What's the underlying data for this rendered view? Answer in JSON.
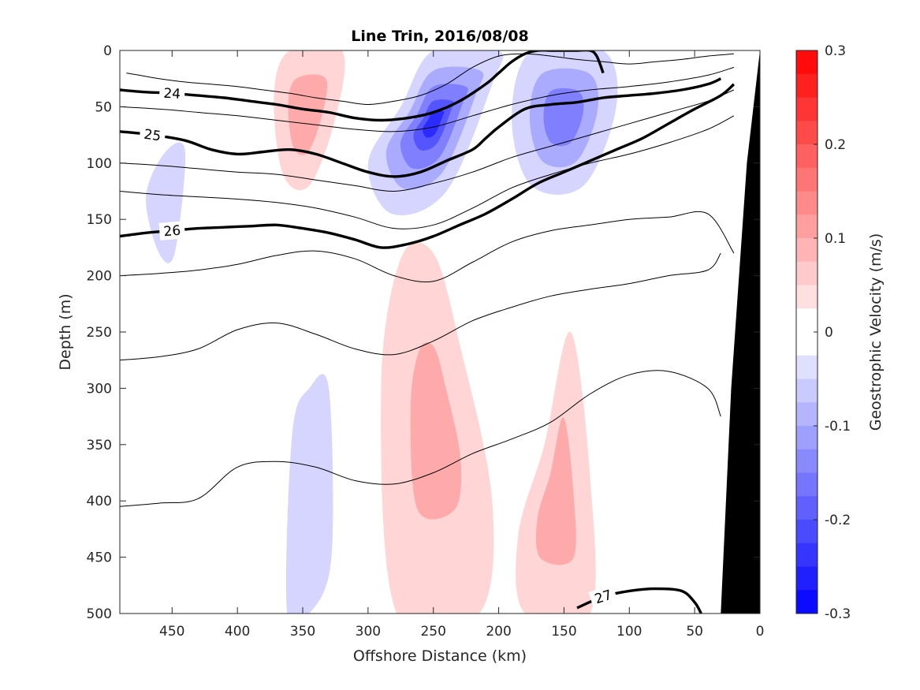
{
  "chart_data": {
    "type": "contour",
    "title": "Line Trin, 2016/08/08",
    "xlabel": "Offshore Distance (km)",
    "ylabel": "Depth (m)",
    "colorbar_label": "Geostrophic Velocity (m/s)",
    "xlim": [
      490,
      0
    ],
    "ylim": [
      0,
      500
    ],
    "x_reversed": true,
    "y_reversed": true,
    "x_ticks": [
      450,
      400,
      350,
      300,
      250,
      200,
      150,
      100,
      50,
      0
    ],
    "y_ticks": [
      0,
      50,
      100,
      150,
      200,
      250,
      300,
      350,
      400,
      450,
      500
    ],
    "colorbar_range": [
      -0.3,
      0.3
    ],
    "colorbar_ticks": [
      0.3,
      0.2,
      0.1,
      0,
      -0.1,
      -0.2,
      -0.3
    ],
    "colorbar_tick_labels": [
      "0.3",
      "0.2",
      "0.1",
      "0",
      "-0.1",
      "-0.2",
      "-0.3"
    ],
    "colorbar_levels": 24,
    "colors": {
      "positive": "#ff0000",
      "negative": "#0000ff",
      "zero": "#ffffff",
      "bathymetry": "#000000"
    },
    "bathymetry": [
      {
        "x": 0,
        "depth": 0
      },
      {
        "x": 10,
        "depth": 100
      },
      {
        "x": 22,
        "depth": 300
      },
      {
        "x": 30,
        "depth": 500
      }
    ],
    "velocity_fields": [
      {
        "id": "blue-core-1",
        "sign": "negative",
        "x": [
          200,
          250,
          275,
          300,
          282,
          240,
          205
        ],
        "depth": [
          0,
          0,
          50,
          100,
          145,
          125,
          30
        ],
        "levels": [
          {
            "value": -0.05,
            "scale": 1.0
          },
          {
            "value": -0.1,
            "scale": 0.72
          },
          {
            "value": -0.15,
            "scale": 0.5
          },
          {
            "value": -0.2,
            "scale": 0.3
          },
          {
            "value": -0.25,
            "scale": 0.16
          }
        ]
      },
      {
        "id": "blue-core-2",
        "sign": "negative",
        "x": [
          120,
          175,
          190,
          175,
          135,
          110
        ],
        "depth": [
          0,
          0,
          60,
          120,
          120,
          50
        ],
        "levels": [
          {
            "value": -0.05,
            "scale": 1.0
          },
          {
            "value": -0.1,
            "scale": 0.65
          },
          {
            "value": -0.15,
            "scale": 0.38
          }
        ]
      },
      {
        "id": "blue-patch-3",
        "sign": "negative",
        "x": [
          440,
          455,
          470,
          460,
          448
        ],
        "depth": [
          90,
          90,
          130,
          180,
          180
        ],
        "levels": [
          {
            "value": -0.05,
            "scale": 1.0
          }
        ]
      },
      {
        "id": "blue-patch-4",
        "sign": "negative",
        "x": [
          330,
          345,
          358,
          362,
          345,
          328
        ],
        "depth": [
          300,
          300,
          340,
          500,
          500,
          450
        ],
        "levels": [
          {
            "value": -0.05,
            "scale": 1.0
          }
        ]
      },
      {
        "id": "red-core-1",
        "sign": "positive",
        "x": [
          320,
          360,
          372,
          365,
          345,
          325
        ],
        "depth": [
          0,
          0,
          40,
          110,
          120,
          60
        ],
        "levels": [
          {
            "value": 0.05,
            "scale": 1.0
          },
          {
            "value": 0.1,
            "scale": 0.55
          }
        ]
      },
      {
        "id": "red-deep-1",
        "sign": "positive",
        "x": [
          250,
          275,
          290,
          278,
          215,
          205,
          230
        ],
        "depth": [
          180,
          185,
          300,
          500,
          500,
          400,
          260
        ],
        "levels": [
          {
            "value": 0.05,
            "scale": 1.0
          },
          {
            "value": 0.1,
            "scale": 0.45
          }
        ]
      },
      {
        "id": "red-deep-2",
        "sign": "positive",
        "x": [
          145,
          165,
          185,
          180,
          130,
          130
        ],
        "depth": [
          250,
          350,
          430,
          500,
          500,
          380
        ],
        "levels": [
          {
            "value": 0.05,
            "scale": 1.0
          },
          {
            "value": 0.1,
            "scale": 0.5
          }
        ]
      }
    ],
    "isopycnals": [
      {
        "level": null,
        "bold": false,
        "x": [
          485,
          475,
          460,
          440,
          420,
          400,
          380,
          360,
          340,
          320,
          300,
          280,
          260,
          240,
          220,
          200,
          180,
          160,
          140,
          120,
          100,
          80,
          60,
          40,
          20
        ],
        "depth": [
          20,
          22,
          25,
          28,
          30,
          32,
          35,
          38,
          42,
          45,
          48,
          45,
          40,
          30,
          15,
          5,
          3,
          5,
          8,
          10,
          12,
          10,
          8,
          5,
          3
        ]
      },
      {
        "level": 24,
        "bold": true,
        "label_at": 455,
        "x": [
          490,
          470,
          450,
          430,
          410,
          390,
          370,
          350,
          330,
          310,
          290,
          270,
          250,
          230,
          210,
          200,
          190,
          180,
          170,
          160,
          150,
          140,
          130,
          125,
          120
        ],
        "depth": [
          35,
          37,
          38,
          40,
          42,
          45,
          48,
          52,
          55,
          60,
          62,
          60,
          55,
          45,
          30,
          20,
          10,
          3,
          0,
          0,
          0,
          0,
          0,
          5,
          20
        ]
      },
      {
        "level": null,
        "bold": false,
        "x": [
          490,
          460,
          430,
          400,
          370,
          340,
          310,
          280,
          250,
          220,
          190,
          160,
          130,
          100,
          70,
          40,
          20
        ],
        "depth": [
          50,
          52,
          55,
          58,
          62,
          66,
          70,
          72,
          68,
          58,
          48,
          40,
          35,
          32,
          28,
          22,
          15
        ]
      },
      {
        "level": 25,
        "bold": true,
        "label_at": 470,
        "x": [
          490,
          465,
          440,
          420,
          400,
          380,
          360,
          340,
          320,
          300,
          280,
          260,
          240,
          220,
          210,
          200,
          180,
          160,
          140,
          120,
          100,
          80,
          60,
          40,
          30
        ],
        "depth": [
          72,
          75,
          80,
          88,
          92,
          90,
          88,
          92,
          100,
          108,
          112,
          108,
          98,
          88,
          78,
          68,
          52,
          48,
          46,
          42,
          40,
          38,
          35,
          30,
          25
        ]
      },
      {
        "level": null,
        "bold": false,
        "x": [
          490,
          460,
          430,
          400,
          370,
          340,
          310,
          280,
          250,
          220,
          190,
          160,
          130,
          100,
          70,
          40,
          20
        ],
        "depth": [
          100,
          102,
          105,
          108,
          110,
          115,
          120,
          125,
          118,
          108,
          95,
          85,
          75,
          65,
          55,
          45,
          35
        ]
      },
      {
        "level": 26,
        "bold": true,
        "label_at": 450,
        "x": [
          490,
          470,
          450,
          430,
          410,
          390,
          370,
          350,
          330,
          310,
          290,
          270,
          250,
          230,
          210,
          190,
          170,
          150,
          130,
          110,
          90,
          70,
          50,
          30,
          20
        ],
        "depth": [
          165,
          162,
          160,
          158,
          157,
          156,
          155,
          158,
          162,
          168,
          175,
          172,
          165,
          155,
          145,
          132,
          118,
          108,
          98,
          88,
          78,
          65,
          52,
          40,
          30
        ]
      },
      {
        "level": null,
        "bold": false,
        "x": [
          490,
          460,
          430,
          400,
          370,
          340,
          310,
          280,
          250,
          220,
          190,
          160,
          130,
          100,
          70,
          40,
          20
        ],
        "depth": [
          125,
          128,
          130,
          132,
          135,
          140,
          148,
          158,
          155,
          140,
          122,
          110,
          100,
          92,
          82,
          70,
          58
        ]
      },
      {
        "level": null,
        "bold": false,
        "x": [
          490,
          460,
          430,
          400,
          370,
          340,
          310,
          280,
          250,
          220,
          190,
          160,
          130,
          100,
          70,
          40,
          20
        ],
        "depth": [
          200,
          198,
          195,
          190,
          182,
          178,
          185,
          200,
          205,
          188,
          170,
          160,
          155,
          150,
          148,
          145,
          180
        ]
      },
      {
        "level": null,
        "bold": false,
        "x": [
          490,
          460,
          430,
          400,
          370,
          340,
          310,
          280,
          250,
          220,
          190,
          160,
          130,
          100,
          70,
          40,
          30
        ],
        "depth": [
          275,
          272,
          265,
          248,
          242,
          252,
          265,
          270,
          258,
          240,
          228,
          218,
          212,
          207,
          200,
          195,
          180
        ]
      },
      {
        "level": null,
        "bold": false,
        "x": [
          490,
          460,
          430,
          400,
          370,
          340,
          310,
          280,
          250,
          220,
          190,
          160,
          130,
          100,
          70,
          40,
          30
        ],
        "depth": [
          405,
          402,
          398,
          370,
          365,
          370,
          382,
          385,
          375,
          358,
          345,
          330,
          305,
          288,
          285,
          300,
          325
        ]
      },
      {
        "level": 27,
        "bold": true,
        "label_at": 120,
        "x": [
          140,
          120,
          100,
          80,
          60,
          50,
          45
        ],
        "depth": [
          495,
          485,
          480,
          478,
          480,
          490,
          500
        ]
      }
    ]
  }
}
